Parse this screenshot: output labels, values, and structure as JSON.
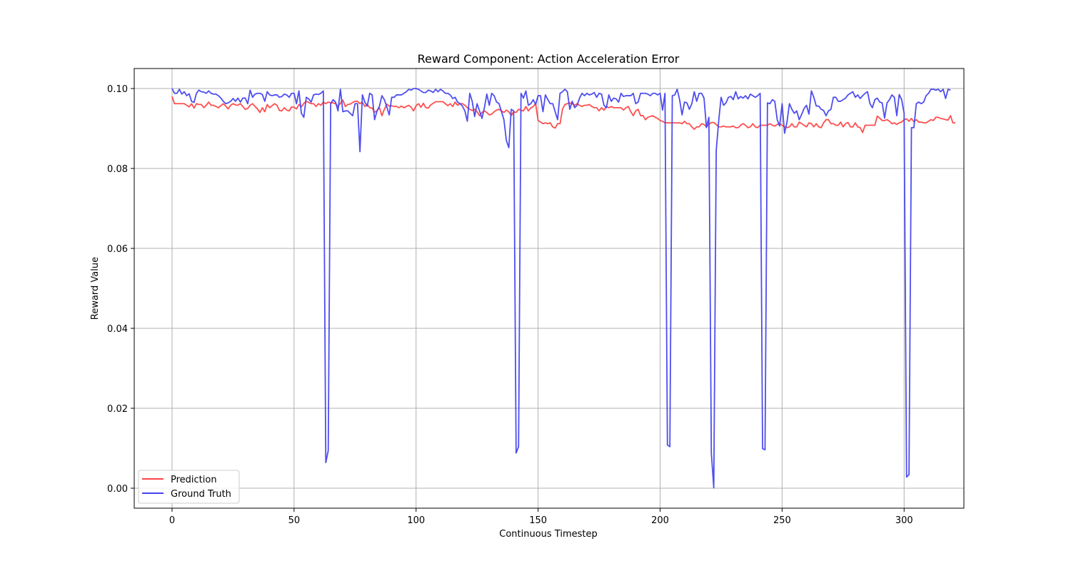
{
  "chart_data": {
    "type": "line",
    "title": "Reward Component: Action Acceleration Error",
    "xlabel": "Continuous Timestep",
    "ylabel": "Reward Value",
    "xlim": [
      -15.5,
      324.5
    ],
    "ylim": [
      -0.005,
      0.105
    ],
    "xticks": [
      0,
      50,
      100,
      150,
      200,
      250,
      300
    ],
    "xtick_labels": [
      "0",
      "50",
      "100",
      "150",
      "200",
      "250",
      "300"
    ],
    "yticks": [
      0.0,
      0.02,
      0.04,
      0.06,
      0.08,
      0.1
    ],
    "ytick_labels": [
      "0.00",
      "0.02",
      "0.04",
      "0.06",
      "0.08",
      "0.10"
    ],
    "grid": true,
    "legend_position": "lower-left",
    "x_start": 0,
    "x_step": 1,
    "series": [
      {
        "name": "Prediction",
        "color": "#ff4444",
        "values": [
          0.098,
          0.0962,
          0.0962,
          0.0962,
          0.0962,
          0.0962,
          0.0958,
          0.0954,
          0.0962,
          0.0951,
          0.0962,
          0.096,
          0.096,
          0.0952,
          0.0958,
          0.0966,
          0.0958,
          0.0958,
          0.0955,
          0.0952,
          0.0957,
          0.0962,
          0.0956,
          0.0949,
          0.0958,
          0.0962,
          0.0959,
          0.0958,
          0.0962,
          0.0955,
          0.0948,
          0.095,
          0.0958,
          0.0962,
          0.0955,
          0.0949,
          0.094,
          0.0952,
          0.0942,
          0.096,
          0.0952,
          0.0957,
          0.0962,
          0.0958,
          0.0945,
          0.0944,
          0.0952,
          0.0946,
          0.0944,
          0.0954,
          0.0953,
          0.0949,
          0.096,
          0.0954,
          0.0963,
          0.0968,
          0.0965,
          0.0962,
          0.0962,
          0.0955,
          0.0962,
          0.0958,
          0.0966,
          0.0962,
          0.0966,
          0.0964,
          0.0964,
          0.0962,
          0.0955,
          0.0963,
          0.0971,
          0.0955,
          0.096,
          0.0961,
          0.0965,
          0.0968,
          0.0968,
          0.0962,
          0.0966,
          0.0955,
          0.096,
          0.0952,
          0.0951,
          0.0941,
          0.0944,
          0.0952,
          0.0932,
          0.0948,
          0.0961,
          0.0956,
          0.0957,
          0.0955,
          0.0955,
          0.0952,
          0.0956,
          0.0952,
          0.0955,
          0.0958,
          0.0953,
          0.0944,
          0.0957,
          0.0962,
          0.0953,
          0.0963,
          0.0952,
          0.0951,
          0.0959,
          0.0963,
          0.0967,
          0.0967,
          0.0967,
          0.0967,
          0.0962,
          0.0957,
          0.0962,
          0.0955,
          0.0966,
          0.0958,
          0.0962,
          0.0962,
          0.0958,
          0.0952,
          0.0948,
          0.0945,
          0.0948,
          0.0942,
          0.0932,
          0.094,
          0.0944,
          0.094,
          0.0934,
          0.0936,
          0.0942,
          0.0946,
          0.0948,
          0.0944,
          0.094,
          0.0946,
          0.0942,
          0.0932,
          0.0942,
          0.094,
          0.0948,
          0.0945,
          0.0944,
          0.0955,
          0.0944,
          0.0951,
          0.0955,
          0.0962,
          0.092,
          0.0916,
          0.0912,
          0.0914,
          0.0912,
          0.0914,
          0.0904,
          0.0901,
          0.0912,
          0.0912,
          0.0948,
          0.096,
          0.0962,
          0.0964,
          0.0962,
          0.0958,
          0.0962,
          0.0958,
          0.0955,
          0.0958,
          0.0958,
          0.096,
          0.0955,
          0.0952,
          0.0952,
          0.0944,
          0.0952,
          0.0946,
          0.0955,
          0.0952,
          0.0955,
          0.0952,
          0.0952,
          0.0952,
          0.0952,
          0.0946,
          0.0952,
          0.0955,
          0.0942,
          0.0932,
          0.0944,
          0.0948,
          0.0932,
          0.0932,
          0.0922,
          0.0928,
          0.093,
          0.0932,
          0.0928,
          0.0925,
          0.092,
          0.0918,
          0.0914,
          0.0914,
          0.0914,
          0.0914,
          0.0914,
          0.0914,
          0.0914,
          0.0912,
          0.0918,
          0.0912,
          0.0912,
          0.0904,
          0.0898,
          0.0904,
          0.0904,
          0.0912,
          0.091,
          0.0904,
          0.091,
          0.0915,
          0.0915,
          0.091,
          0.0904,
          0.0904,
          0.0906,
          0.0904,
          0.0904,
          0.0904,
          0.0906,
          0.0902,
          0.0902,
          0.0908,
          0.0912,
          0.0908,
          0.0902,
          0.0904,
          0.0912,
          0.0904,
          0.0902,
          0.0908,
          0.0908,
          0.0908,
          0.0908,
          0.0912,
          0.0908,
          0.0906,
          0.091,
          0.0912,
          0.0908,
          0.0904,
          0.0902,
          0.0904,
          0.0912,
          0.0904,
          0.0904,
          0.0916,
          0.0912,
          0.0908,
          0.0904,
          0.0914,
          0.0912,
          0.0904,
          0.0912,
          0.0904,
          0.0902,
          0.0914,
          0.0922,
          0.0922,
          0.0912,
          0.0912,
          0.0908,
          0.0908,
          0.0916,
          0.0904,
          0.0912,
          0.0915,
          0.0904,
          0.0904,
          0.0914,
          0.0904,
          0.0902,
          0.089,
          0.0908,
          0.0908,
          0.0908,
          0.0908,
          0.0908,
          0.0931,
          0.0926,
          0.092,
          0.092,
          0.0922,
          0.0918,
          0.0912,
          0.0914,
          0.091,
          0.0914,
          0.0916,
          0.0922,
          0.0924,
          0.0918,
          0.0925,
          0.0917,
          0.0922,
          0.0916,
          0.0916,
          0.0914,
          0.0914,
          0.0918,
          0.0922,
          0.092,
          0.0928,
          0.0928,
          0.0925,
          0.0924,
          0.0922,
          0.0921,
          0.0932,
          0.0914,
          0.0914
        ]
      },
      {
        "name": "Ground Truth",
        "color": "#4444ee",
        "values": [
          0.1,
          0.0988,
          0.0988,
          0.0998,
          0.0986,
          0.0992,
          0.0982,
          0.0987,
          0.0968,
          0.0965,
          0.0988,
          0.0996,
          0.0992,
          0.0991,
          0.0988,
          0.0994,
          0.0988,
          0.0986,
          0.0986,
          0.0982,
          0.0976,
          0.0968,
          0.0962,
          0.0964,
          0.0968,
          0.0975,
          0.0968,
          0.0976,
          0.0966,
          0.0976,
          0.0976,
          0.0962,
          0.0996,
          0.0978,
          0.0986,
          0.0988,
          0.0988,
          0.0985,
          0.0968,
          0.0992,
          0.0984,
          0.0982,
          0.0984,
          0.0984,
          0.0978,
          0.098,
          0.0986,
          0.0984,
          0.0978,
          0.0988,
          0.0988,
          0.0962,
          0.0994,
          0.0938,
          0.0928,
          0.0978,
          0.0974,
          0.0966,
          0.0984,
          0.0986,
          0.0985,
          0.0988,
          0.0994,
          0.0064,
          0.0094,
          0.0962,
          0.0972,
          0.0966,
          0.0944,
          0.0998,
          0.0942,
          0.0944,
          0.0944,
          0.0938,
          0.0932,
          0.0962,
          0.0962,
          0.0842,
          0.0984,
          0.0966,
          0.0956,
          0.0988,
          0.0984,
          0.0922,
          0.0944,
          0.0956,
          0.0982,
          0.0972,
          0.0954,
          0.0934,
          0.0978,
          0.0978,
          0.0984,
          0.0984,
          0.0984,
          0.0988,
          0.0992,
          0.0998,
          0.0996,
          0.1,
          0.1,
          0.0998,
          0.0994,
          0.099,
          0.099,
          0.0996,
          0.0994,
          0.099,
          0.0998,
          0.0992,
          0.0998,
          0.0994,
          0.0988,
          0.0988,
          0.0984,
          0.0975,
          0.0978,
          0.0966,
          0.0962,
          0.0956,
          0.0944,
          0.0918,
          0.0988,
          0.0968,
          0.093,
          0.0962,
          0.0944,
          0.0925,
          0.0952,
          0.0986,
          0.0958,
          0.0988,
          0.0982,
          0.0966,
          0.0962,
          0.0942,
          0.0922,
          0.087,
          0.0852,
          0.0948,
          0.0944,
          0.0088,
          0.0104,
          0.0988,
          0.0976,
          0.0994,
          0.0958,
          0.0962,
          0.0972,
          0.096,
          0.0982,
          0.0982,
          0.0942,
          0.0984,
          0.0972,
          0.0962,
          0.0962,
          0.0942,
          0.0922,
          0.0988,
          0.0992,
          0.0998,
          0.0992,
          0.0948,
          0.0968,
          0.0952,
          0.0958,
          0.0976,
          0.0988,
          0.0982,
          0.0988,
          0.0984,
          0.0986,
          0.099,
          0.0978,
          0.0988,
          0.0986,
          0.0958,
          0.0952,
          0.0984,
          0.0968,
          0.0976,
          0.0974,
          0.0966,
          0.0988,
          0.098,
          0.0982,
          0.0982,
          0.0982,
          0.0988,
          0.0962,
          0.0966,
          0.0988,
          0.0988,
          0.0988,
          0.0986,
          0.0982,
          0.0988,
          0.0988,
          0.0984,
          0.0988,
          0.0946,
          0.0988,
          0.0108,
          0.0104,
          0.0982,
          0.0984,
          0.0998,
          0.0972,
          0.0934,
          0.0966,
          0.0964,
          0.0948,
          0.0962,
          0.0992,
          0.0968,
          0.0988,
          0.0988,
          0.0976,
          0.0902,
          0.0928,
          0.0088,
          0.0001,
          0.0845,
          0.0918,
          0.0978,
          0.0958,
          0.0964,
          0.0978,
          0.098,
          0.0972,
          0.0992,
          0.0974,
          0.098,
          0.0976,
          0.0982,
          0.0974,
          0.0986,
          0.0982,
          0.0978,
          0.0982,
          0.0988,
          0.0099,
          0.0096,
          0.0964,
          0.0962,
          0.0972,
          0.0968,
          0.0922,
          0.0906,
          0.0962,
          0.0888,
          0.0916,
          0.0962,
          0.0948,
          0.0938,
          0.0944,
          0.0922,
          0.0935,
          0.095,
          0.0958,
          0.0936,
          0.0994,
          0.0978,
          0.0956,
          0.0956,
          0.0948,
          0.0945,
          0.0932,
          0.0944,
          0.0948,
          0.0978,
          0.0978,
          0.0968,
          0.0968,
          0.0972,
          0.0976,
          0.0984,
          0.0988,
          0.0992,
          0.0978,
          0.0984,
          0.0975,
          0.0982,
          0.0988,
          0.0992,
          0.0962,
          0.0952,
          0.0972,
          0.0976,
          0.0966,
          0.0964,
          0.0926,
          0.0964,
          0.0972,
          0.0984,
          0.0978,
          0.0932,
          0.0985,
          0.0972,
          0.0938,
          0.0028,
          0.0034,
          0.0902,
          0.0902,
          0.0962,
          0.0966,
          0.0962,
          0.0966,
          0.0982,
          0.0988,
          0.0998,
          0.0998,
          0.0996,
          0.0998,
          0.0992,
          0.0998,
          0.0975,
          0.0998,
          0.0996
        ]
      }
    ]
  }
}
